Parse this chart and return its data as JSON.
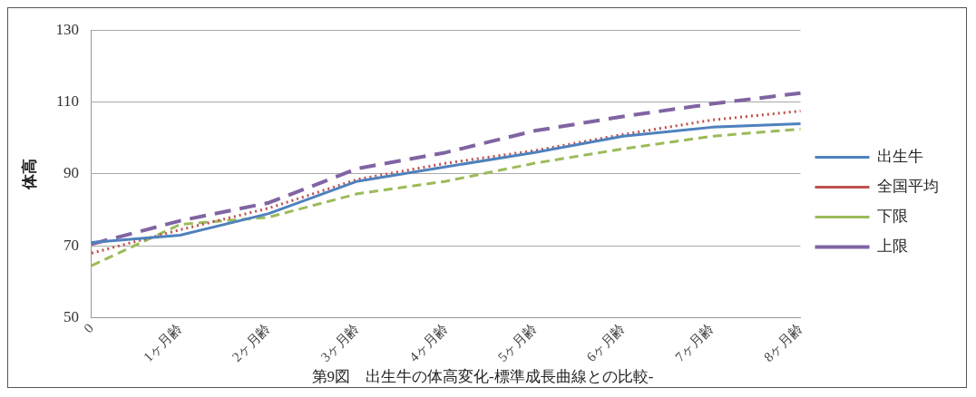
{
  "chart_data": {
    "type": "line",
    "title": "第9図　出生牛の体高変化-標準成長曲線との比較-",
    "ylabel": "体高",
    "categories": [
      "0",
      "1ヶ月齢",
      "2ヶ月齢",
      "3ヶ月齢",
      "4ヶ月齢",
      "5ヶ月齢",
      "6ヶ月齢",
      "7ヶ月齢",
      "8ヶ月齢"
    ],
    "series": [
      {
        "name": "出生牛",
        "color": "#4f81bd",
        "line_style": "solid",
        "values": [
          71,
          73,
          79,
          88,
          92,
          96,
          100.5,
          103,
          104
        ]
      },
      {
        "name": "全国平均",
        "color": "#c0504d",
        "line_style": "dotted",
        "values": [
          68,
          74.5,
          80.5,
          88.5,
          93,
          96.5,
          101,
          105,
          107.5
        ]
      },
      {
        "name": "下限",
        "color": "#9bbb59",
        "line_style": "dashed",
        "values": [
          64.5,
          76,
          78,
          84.5,
          88,
          93,
          97,
          100.5,
          102.5
        ]
      },
      {
        "name": "上限",
        "color": "#8064a2",
        "line_style": "dashed",
        "values": [
          70.5,
          77,
          82,
          91.5,
          96,
          102,
          106,
          109.5,
          112.5
        ]
      }
    ],
    "ylim": [
      50,
      130
    ],
    "yticks": [
      50,
      70,
      90,
      110,
      130
    ],
    "grid": "y",
    "legend": "right",
    "marker": "none"
  }
}
